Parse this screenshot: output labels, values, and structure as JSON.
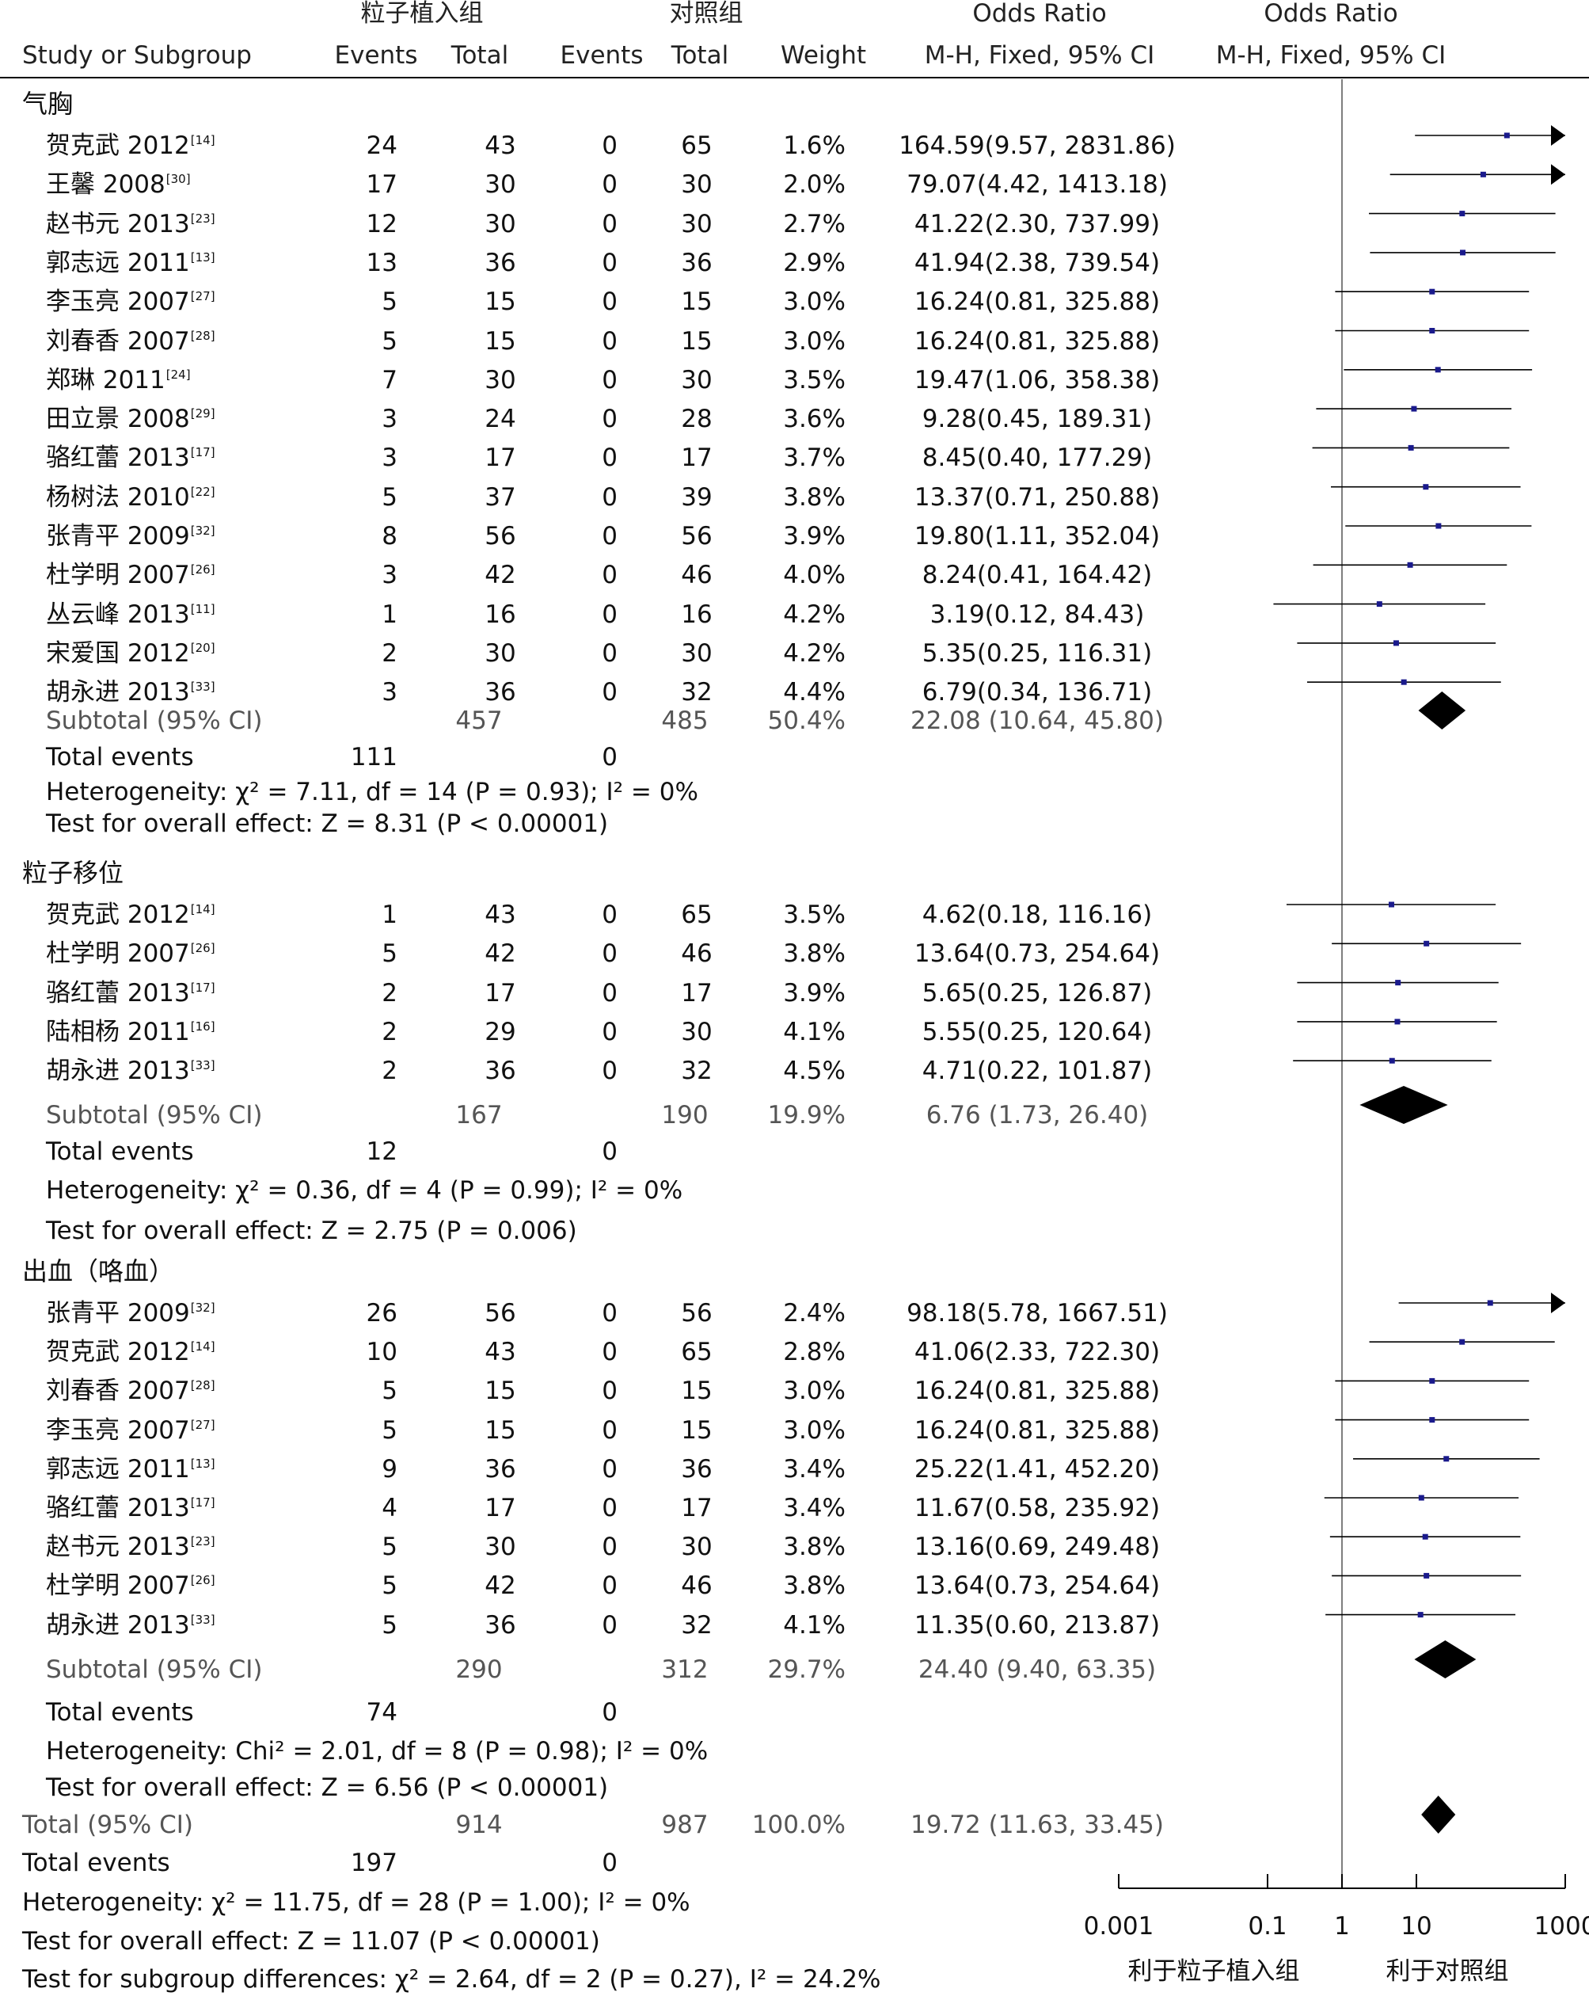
{
  "headers": {
    "group_treat": "粒子植入组",
    "group_control": "对照组",
    "or_title_1": "Odds Ratio",
    "or_method_1": "M-H, Fixed, 95% CI",
    "or_title_2": "Odds Ratio",
    "or_method_2": "M-H, Fixed, 95% CI",
    "study": "Study or Subgroup",
    "events": "Events",
    "total": "Total",
    "events2": "Events",
    "total2": "Total",
    "weight": "Weight"
  },
  "labels": {
    "subtotal": "Subtotal (95% CI)",
    "total_events": "Total events"
  },
  "groups": [
    {
      "title": "气胸",
      "studies": [
        {
          "name": "贺克武 2012",
          "ref": "[14]",
          "e1": "24",
          "n1": "43",
          "e2": "0",
          "n2": "65",
          "weight": "1.6%",
          "ci_text": "164.59(9.57, 2831.86)",
          "or": 164.59,
          "lo": 9.57,
          "hi": 2831.86
        },
        {
          "name": "王馨 2008",
          "ref": "[30]",
          "e1": "17",
          "n1": "30",
          "e2": "0",
          "n2": "30",
          "weight": "2.0%",
          "ci_text": "79.07(4.42, 1413.18)",
          "or": 79.07,
          "lo": 4.42,
          "hi": 1413.18
        },
        {
          "name": "赵书元 2013",
          "ref": "[23]",
          "e1": "12",
          "n1": "30",
          "e2": "0",
          "n2": "30",
          "weight": "2.7%",
          "ci_text": "41.22(2.30, 737.99)",
          "or": 41.22,
          "lo": 2.3,
          "hi": 737.99
        },
        {
          "name": "郭志远 2011",
          "ref": "[13]",
          "e1": "13",
          "n1": "36",
          "e2": "0",
          "n2": "36",
          "weight": "2.9%",
          "ci_text": "41.94(2.38, 739.54)",
          "or": 41.94,
          "lo": 2.38,
          "hi": 739.54
        },
        {
          "name": "李玉亮 2007",
          "ref": "[27]",
          "e1": "5",
          "n1": "15",
          "e2": "0",
          "n2": "15",
          "weight": "3.0%",
          "ci_text": "16.24(0.81, 325.88)",
          "or": 16.24,
          "lo": 0.81,
          "hi": 325.88
        },
        {
          "name": "刘春香 2007",
          "ref": "[28]",
          "e1": "5",
          "n1": "15",
          "e2": "0",
          "n2": "15",
          "weight": "3.0%",
          "ci_text": "16.24(0.81, 325.88)",
          "or": 16.24,
          "lo": 0.81,
          "hi": 325.88
        },
        {
          "name": "郑琳 2011",
          "ref": "[24]",
          "e1": "7",
          "n1": "30",
          "e2": "0",
          "n2": "30",
          "weight": "3.5%",
          "ci_text": "19.47(1.06, 358.38)",
          "or": 19.47,
          "lo": 1.06,
          "hi": 358.38
        },
        {
          "name": "田立景 2008",
          "ref": "[29]",
          "e1": "3",
          "n1": "24",
          "e2": "0",
          "n2": "28",
          "weight": "3.6%",
          "ci_text": "9.28(0.45, 189.31)",
          "or": 9.28,
          "lo": 0.45,
          "hi": 189.31
        },
        {
          "name": "骆红蕾 2013",
          "ref": "[17]",
          "e1": "3",
          "n1": "17",
          "e2": "0",
          "n2": "17",
          "weight": "3.7%",
          "ci_text": "8.45(0.40, 177.29)",
          "or": 8.45,
          "lo": 0.4,
          "hi": 177.29
        },
        {
          "name": "杨树法 2010",
          "ref": "[22]",
          "e1": "5",
          "n1": "37",
          "e2": "0",
          "n2": "39",
          "weight": "3.8%",
          "ci_text": "13.37(0.71, 250.88)",
          "or": 13.37,
          "lo": 0.71,
          "hi": 250.88
        },
        {
          "name": "张青平 2009",
          "ref": "[32]",
          "e1": "8",
          "n1": "56",
          "e2": "0",
          "n2": "56",
          "weight": "3.9%",
          "ci_text": "19.80(1.11, 352.04)",
          "or": 19.8,
          "lo": 1.11,
          "hi": 352.04
        },
        {
          "name": "杜学明 2007",
          "ref": "[26]",
          "e1": "3",
          "n1": "42",
          "e2": "0",
          "n2": "46",
          "weight": "4.0%",
          "ci_text": "8.24(0.41, 164.42)",
          "or": 8.24,
          "lo": 0.41,
          "hi": 164.42
        },
        {
          "name": "丛云峰 2013",
          "ref": "[11]",
          "e1": "1",
          "n1": "16",
          "e2": "0",
          "n2": "16",
          "weight": "4.2%",
          "ci_text": "3.19(0.12, 84.43)",
          "or": 3.19,
          "lo": 0.12,
          "hi": 84.43
        },
        {
          "name": "宋爱国 2012",
          "ref": "[20]",
          "e1": "2",
          "n1": "30",
          "e2": "0",
          "n2": "30",
          "weight": "4.2%",
          "ci_text": "5.35(0.25, 116.31)",
          "or": 5.35,
          "lo": 0.25,
          "hi": 116.31
        },
        {
          "name": "胡永进 2013",
          "ref": "[33]",
          "e1": "3",
          "n1": "36",
          "e2": "0",
          "n2": "32",
          "weight": "4.4%",
          "ci_text": "6.79(0.34, 136.71)",
          "or": 6.79,
          "lo": 0.34,
          "hi": 136.71
        }
      ],
      "subtotal": {
        "n1": "457",
        "n2": "485",
        "weight": "50.4%",
        "ci_text": "22.08 (10.64, 45.80)",
        "or": 22.08,
        "lo": 10.64,
        "hi": 45.8
      },
      "total_events": {
        "e1": "111",
        "e2": "0"
      },
      "heterogeneity": "Heterogeneity: χ² = 7.11, df = 14 (P = 0.93); I² = 0%",
      "overall": "Test for overall effect: Z = 8.31 (P < 0.00001)"
    },
    {
      "title": "粒子移位",
      "studies": [
        {
          "name": "贺克武 2012",
          "ref": "[14]",
          "e1": "1",
          "n1": "43",
          "e2": "0",
          "n2": "65",
          "weight": "3.5%",
          "ci_text": "4.62(0.18, 116.16)",
          "or": 4.62,
          "lo": 0.18,
          "hi": 116.16
        },
        {
          "name": "杜学明 2007",
          "ref": "[26]",
          "e1": "5",
          "n1": "42",
          "e2": "0",
          "n2": "46",
          "weight": "3.8%",
          "ci_text": "13.64(0.73, 254.64)",
          "or": 13.64,
          "lo": 0.73,
          "hi": 254.64
        },
        {
          "name": "骆红蕾 2013",
          "ref": "[17]",
          "e1": "2",
          "n1": "17",
          "e2": "0",
          "n2": "17",
          "weight": "3.9%",
          "ci_text": "5.65(0.25, 126.87)",
          "or": 5.65,
          "lo": 0.25,
          "hi": 126.87
        },
        {
          "name": "陆相杨 2011",
          "ref": "[16]",
          "e1": "2",
          "n1": "29",
          "e2": "0",
          "n2": "30",
          "weight": "4.1%",
          "ci_text": "5.55(0.25, 120.64)",
          "or": 5.55,
          "lo": 0.25,
          "hi": 120.64
        },
        {
          "name": "胡永进 2013",
          "ref": "[33]",
          "e1": "2",
          "n1": "36",
          "e2": "0",
          "n2": "32",
          "weight": "4.5%",
          "ci_text": "4.71(0.22, 101.87)",
          "or": 4.71,
          "lo": 0.22,
          "hi": 101.87
        }
      ],
      "subtotal": {
        "n1": "167",
        "n2": "190",
        "weight": "19.9%",
        "ci_text": "6.76 (1.73, 26.40)",
        "or": 6.76,
        "lo": 1.73,
        "hi": 26.4
      },
      "total_events": {
        "e1": "12",
        "e2": "0"
      },
      "heterogeneity": "Heterogeneity: χ² = 0.36, df = 4 (P = 0.99); I² = 0%",
      "overall": "Test for overall effect: Z = 2.75 (P = 0.006)"
    },
    {
      "title": "出血（咯血）",
      "studies": [
        {
          "name": "张青平 2009",
          "ref": "[32]",
          "e1": "26",
          "n1": "56",
          "e2": "0",
          "n2": "56",
          "weight": "2.4%",
          "ci_text": "98.18(5.78, 1667.51)",
          "or": 98.18,
          "lo": 5.78,
          "hi": 1667.51
        },
        {
          "name": "贺克武 2012",
          "ref": "[14]",
          "e1": "10",
          "n1": "43",
          "e2": "0",
          "n2": "65",
          "weight": "2.8%",
          "ci_text": "41.06(2.33, 722.30)",
          "or": 41.06,
          "lo": 2.33,
          "hi": 722.3
        },
        {
          "name": "刘春香 2007",
          "ref": "[28]",
          "e1": "5",
          "n1": "15",
          "e2": "0",
          "n2": "15",
          "weight": "3.0%",
          "ci_text": "16.24(0.81, 325.88)",
          "or": 16.24,
          "lo": 0.81,
          "hi": 325.88
        },
        {
          "name": "李玉亮 2007",
          "ref": "[27]",
          "e1": "5",
          "n1": "15",
          "e2": "0",
          "n2": "15",
          "weight": "3.0%",
          "ci_text": "16.24(0.81, 325.88)",
          "or": 16.24,
          "lo": 0.81,
          "hi": 325.88
        },
        {
          "name": "郭志远 2011",
          "ref": "[13]",
          "e1": "9",
          "n1": "36",
          "e2": "0",
          "n2": "36",
          "weight": "3.4%",
          "ci_text": "25.22(1.41, 452.20)",
          "or": 25.22,
          "lo": 1.41,
          "hi": 452.2
        },
        {
          "name": "骆红蕾 2013",
          "ref": "[17]",
          "e1": "4",
          "n1": "17",
          "e2": "0",
          "n2": "17",
          "weight": "3.4%",
          "ci_text": "11.67(0.58, 235.92)",
          "or": 11.67,
          "lo": 0.58,
          "hi": 235.92
        },
        {
          "name": "赵书元 2013",
          "ref": "[23]",
          "e1": "5",
          "n1": "30",
          "e2": "0",
          "n2": "30",
          "weight": "3.8%",
          "ci_text": "13.16(0.69, 249.48)",
          "or": 13.16,
          "lo": 0.69,
          "hi": 249.48
        },
        {
          "name": "杜学明 2007",
          "ref": "[26]",
          "e1": "5",
          "n1": "42",
          "e2": "0",
          "n2": "46",
          "weight": "3.8%",
          "ci_text": "13.64(0.73, 254.64)",
          "or": 13.64,
          "lo": 0.73,
          "hi": 254.64
        },
        {
          "name": "胡永进 2013",
          "ref": "[33]",
          "e1": "5",
          "n1": "36",
          "e2": "0",
          "n2": "32",
          "weight": "4.1%",
          "ci_text": "11.35(0.60, 213.87)",
          "or": 11.35,
          "lo": 0.6,
          "hi": 213.87
        }
      ],
      "subtotal": {
        "n1": "290",
        "n2": "312",
        "weight": "29.7%",
        "ci_text": "24.40 (9.40, 63.35)",
        "or": 24.4,
        "lo": 9.4,
        "hi": 63.35
      },
      "total_events": {
        "e1": "74",
        "e2": "0"
      },
      "heterogeneity": "Heterogeneity: Chi² = 2.01, df = 8 (P = 0.98); I² = 0%",
      "overall": "Test for overall effect: Z = 6.56 (P < 0.00001)"
    }
  ],
  "total": {
    "label": "Total (95% CI)",
    "n1": "914",
    "n2": "987",
    "weight": "100.0%",
    "ci_text": "19.72 (11.63, 33.45)",
    "or": 19.72,
    "lo": 11.63,
    "hi": 33.45,
    "events_label": "Total events",
    "e1": "197",
    "e2": "0",
    "heterogeneity": "Heterogeneity: χ² = 11.75, df = 28 (P = 1.00); I² = 0%",
    "overall": "Test for overall effect: Z = 11.07 (P < 0.00001)",
    "subgroup": "Test for subgroup differences: χ² = 2.64, df = 2 (P = 0.27), I² = 24.2%"
  },
  "chart_data": {
    "type": "forest",
    "scale": "log",
    "xlim": [
      0.001,
      1000
    ],
    "ticks": [
      "0.001",
      "0.1",
      "1",
      "10",
      "1000"
    ],
    "tick_values": [
      0.001,
      0.1,
      1,
      10,
      1000
    ],
    "null_line": 1,
    "favours_left": "利于粒子植入组",
    "favours_right": "利于对照组",
    "colors": {
      "marker": "#1a1a8c",
      "line": "#000000",
      "diamond": "#000000",
      "text_sub": "#555555"
    }
  }
}
